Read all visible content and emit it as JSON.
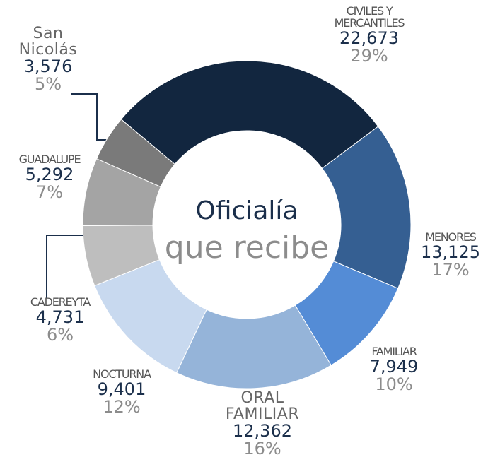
{
  "chart_data": {
    "type": "donut",
    "title": "Oficialía",
    "subtitle": "que recibe",
    "categories": [
      "CIVILES Y MERCANTILES",
      "MENORES",
      "FAMILIAR",
      "ORAL FAMILIAR",
      "NOCTURNA",
      "CADEREYTA",
      "GUADALUPE",
      "San Nicolás"
    ],
    "values": [
      22673,
      13125,
      7949,
      12362,
      9401,
      4731,
      5292,
      3576
    ],
    "value_labels": [
      "22,673",
      "13,125",
      "7,949",
      "12,362",
      "9,401",
      "4,731",
      "5,292",
      "3,576"
    ],
    "percents": [
      29,
      17,
      10,
      16,
      12,
      6,
      7,
      5
    ],
    "percent_labels": [
      "29%",
      "17%",
      "10%",
      "16%",
      "12%",
      "6%",
      "7%",
      "5%"
    ],
    "colors": [
      "#12263f",
      "#355f92",
      "#548cd6",
      "#95b4d9",
      "#c8d9ef",
      "#bebebe",
      "#a4a4a4",
      "#7a7a7a"
    ]
  }
}
